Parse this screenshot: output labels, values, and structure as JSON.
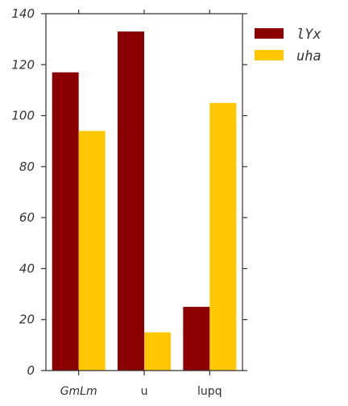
{
  "chart_data": {
    "type": "bar",
    "categories": [
      "GmLm",
      "u",
      "lupq"
    ],
    "category_italic": [
      true,
      false,
      false
    ],
    "series": [
      {
        "name": "lYx",
        "values": [
          117,
          133,
          25
        ],
        "color": "#8b0000"
      },
      {
        "name": "uha",
        "values": [
          94,
          15,
          105
        ],
        "color": "#ffc800"
      }
    ],
    "ylim": [
      0,
      140
    ],
    "yticks": [
      0,
      20,
      40,
      60,
      80,
      100,
      120,
      140
    ],
    "title": "",
    "xlabel": "",
    "ylabel": "",
    "grid": false,
    "legend_position": "outside-top-right"
  }
}
